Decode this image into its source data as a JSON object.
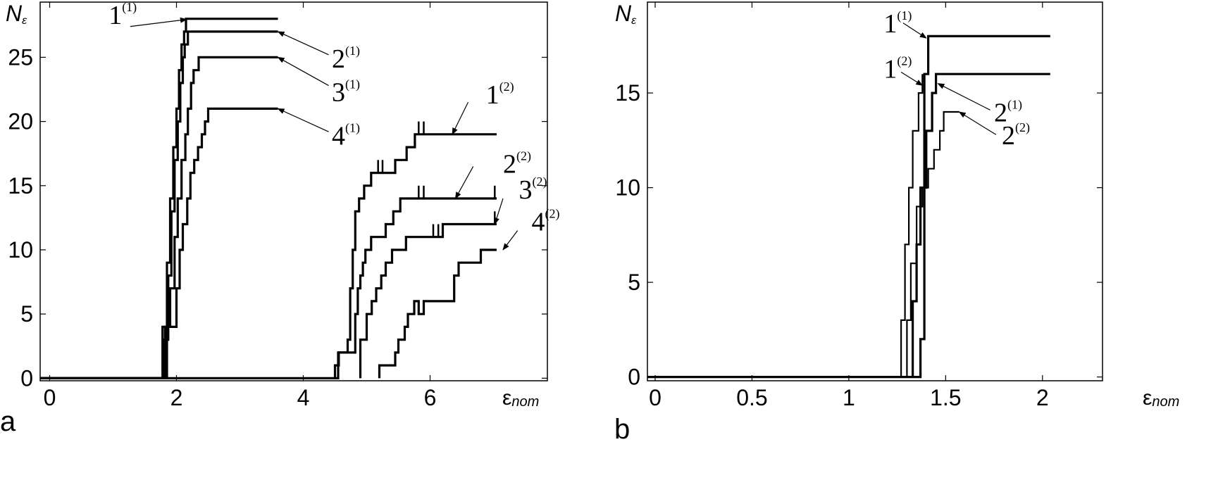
{
  "chart_data": [
    {
      "type": "line",
      "panel_label": "a",
      "ylabel": "N",
      "ylabel_sub": "ε",
      "xlabel": "ε",
      "xlabel_sub": "nom",
      "xlim": [
        -0.15,
        7.85
      ],
      "ylim": [
        -0.2,
        29.3
      ],
      "xticks": [
        0,
        2,
        4,
        6
      ],
      "xtick_labels": [
        "0",
        "2",
        "4",
        "6"
      ],
      "yticks": [
        0,
        5,
        10,
        15,
        20,
        25
      ],
      "ytick_labels": [
        "0",
        "5",
        "10",
        "15",
        "20",
        "25"
      ],
      "series": [
        {
          "label": "1",
          "sup": "(1)",
          "stroke": 3.2,
          "x": [
            -0.15,
            1.78,
            1.78,
            1.85,
            1.85,
            1.9,
            1.9,
            1.95,
            1.95,
            2.0,
            2.0,
            2.04,
            2.04,
            2.08,
            2.08,
            2.12,
            2.12,
            2.15,
            2.15,
            2.2,
            2.2,
            3.6
          ],
          "y": [
            0,
            0,
            4,
            4,
            9,
            9,
            14,
            14,
            18,
            18,
            21,
            21,
            24,
            24,
            26,
            26,
            27,
            27,
            28,
            28,
            28,
            28
          ]
        },
        {
          "label": "2",
          "sup": "(1)",
          "stroke": 3.2,
          "x": [
            -0.15,
            1.8,
            1.8,
            1.87,
            1.87,
            1.92,
            1.92,
            1.97,
            1.97,
            2.02,
            2.02,
            2.06,
            2.06,
            2.1,
            2.1,
            2.13,
            2.13,
            2.18,
            2.18,
            3.6
          ],
          "y": [
            0,
            0,
            3,
            3,
            8,
            8,
            13,
            13,
            17,
            17,
            20,
            20,
            23,
            23,
            25,
            25,
            26,
            26,
            27,
            27
          ]
        },
        {
          "label": "3",
          "sup": "(1)",
          "stroke": 3.2,
          "x": [
            -0.15,
            1.82,
            1.82,
            1.9,
            1.9,
            1.97,
            1.97,
            2.02,
            2.02,
            2.08,
            2.08,
            2.14,
            2.14,
            2.18,
            2.18,
            2.23,
            2.23,
            2.27,
            2.27,
            2.35,
            2.35,
            3.6
          ],
          "y": [
            0,
            0,
            4,
            4,
            7,
            7,
            11,
            11,
            14,
            14,
            17,
            17,
            19,
            19,
            21,
            21,
            23,
            23,
            24,
            24,
            25,
            25
          ]
        },
        {
          "label": "4",
          "sup": "(1)",
          "stroke": 3.2,
          "x": [
            -0.15,
            1.85,
            1.85,
            2.0,
            2.0,
            2.05,
            2.05,
            2.1,
            2.1,
            2.17,
            2.17,
            2.22,
            2.22,
            2.28,
            2.28,
            2.34,
            2.34,
            2.4,
            2.4,
            2.45,
            2.45,
            2.5,
            2.5,
            3.6
          ],
          "y": [
            0,
            0,
            4,
            4,
            7,
            7,
            10,
            10,
            12,
            12,
            14,
            14,
            16,
            16,
            17,
            17,
            18,
            18,
            19,
            19,
            20,
            20,
            21,
            21
          ]
        },
        {
          "label": "1",
          "sup": "(2)",
          "stroke": 3.2,
          "x": [
            4.5,
            4.5,
            4.56,
            4.56,
            4.7,
            4.7,
            4.74,
            4.74,
            4.78,
            4.78,
            4.82,
            4.82,
            4.88,
            4.88,
            4.96,
            4.96,
            5.07,
            5.07,
            5.14,
            5.14,
            5.28,
            5.28,
            5.35,
            5.35,
            5.45,
            5.45,
            5.54,
            5.54,
            5.63,
            5.63,
            5.76,
            5.76,
            7.05
          ],
          "y": [
            0,
            1,
            1,
            2,
            2,
            3,
            3,
            7,
            7,
            10,
            10,
            13,
            13,
            14,
            14,
            15,
            15,
            16,
            16,
            16,
            16,
            16,
            16,
            16,
            16,
            17,
            17,
            17,
            17,
            18,
            18,
            19,
            19
          ]
        },
        {
          "label": "2",
          "sup": "(2)",
          "stroke": 3.2,
          "x": [
            -0.15,
            4.55,
            4.55,
            4.82,
            4.82,
            4.86,
            4.86,
            4.9,
            4.9,
            4.94,
            4.94,
            4.98,
            4.98,
            5.07,
            5.07,
            5.15,
            5.15,
            5.3,
            5.3,
            5.42,
            5.42,
            5.53,
            5.53,
            5.62,
            5.62,
            5.72,
            5.72,
            7.05
          ],
          "y": [
            0,
            0,
            2,
            2,
            5,
            5,
            7,
            7,
            8,
            8,
            9,
            9,
            10,
            10,
            11,
            11,
            11,
            11,
            12,
            12,
            13,
            13,
            14,
            14,
            14,
            14,
            14,
            14
          ]
        },
        {
          "label": "3",
          "sup": "(2)",
          "stroke": 3.2,
          "x": [
            4.9,
            4.9,
            5.0,
            5.0,
            5.08,
            5.08,
            5.15,
            5.15,
            5.23,
            5.23,
            5.3,
            5.3,
            5.4,
            5.4,
            5.5,
            5.5,
            5.62,
            5.62,
            5.75,
            5.75,
            5.9,
            5.9,
            6.2,
            6.2,
            7.05
          ],
          "y": [
            0,
            3,
            3,
            5,
            5,
            6,
            6,
            7,
            7,
            8,
            8,
            9,
            9,
            10,
            10,
            10,
            10,
            11,
            11,
            11,
            11,
            11,
            11,
            12,
            12
          ]
        },
        {
          "label": "4",
          "sup": "(2)",
          "stroke": 3.2,
          "x": [
            5.2,
            5.2,
            5.3,
            5.3,
            5.45,
            5.45,
            5.5,
            5.5,
            5.6,
            5.6,
            5.65,
            5.65,
            5.75,
            5.75,
            5.82,
            5.82,
            5.9,
            5.9,
            6.0,
            6.0,
            6.38,
            6.38,
            6.45,
            6.45,
            6.6,
            6.6,
            6.8,
            6.8,
            7.05
          ],
          "y": [
            0,
            1,
            1,
            1,
            1,
            2,
            2,
            3,
            3,
            4,
            4,
            5,
            5,
            6,
            6,
            5,
            5,
            6,
            6,
            6,
            6,
            8,
            8,
            9,
            9,
            9,
            9,
            10,
            10
          ]
        }
      ],
      "spikes": [
        {
          "x": 5.18,
          "y": [
            16,
            17
          ]
        },
        {
          "x": 5.25,
          "y": [
            16,
            17
          ]
        },
        {
          "x": 5.82,
          "y": [
            19,
            20
          ]
        },
        {
          "x": 5.9,
          "y": [
            19,
            20
          ]
        },
        {
          "x": 5.82,
          "y": [
            14,
            15
          ]
        },
        {
          "x": 5.9,
          "y": [
            14,
            15
          ]
        },
        {
          "x": 7.02,
          "y": [
            14,
            15
          ]
        },
        {
          "x": 6.05,
          "y": [
            11,
            12
          ]
        },
        {
          "x": 6.13,
          "y": [
            11,
            12
          ]
        },
        {
          "x": 7.02,
          "y": [
            12,
            13
          ]
        }
      ],
      "annotations": [
        {
          "label": "1",
          "sup": "(1)",
          "text_at": [
            0.93,
            27.6
          ],
          "arrow_from": [
            1.27,
            27.4
          ],
          "arrow_to": [
            2.16,
            27.95
          ]
        },
        {
          "label": "2",
          "sup": "(1)",
          "text_at": [
            4.45,
            24.2
          ],
          "arrow_from": [
            4.4,
            25.2
          ],
          "arrow_to": [
            3.6,
            27.0
          ]
        },
        {
          "label": "3",
          "sup": "(1)",
          "text_at": [
            4.45,
            21.6
          ],
          "arrow_from": [
            4.4,
            22.8
          ],
          "arrow_to": [
            3.6,
            25.0
          ]
        },
        {
          "label": "4",
          "sup": "(1)",
          "text_at": [
            4.45,
            18.2
          ],
          "arrow_from": [
            4.4,
            19.2
          ],
          "arrow_to": [
            3.6,
            21.0
          ]
        },
        {
          "label": "1",
          "sup": "(2)",
          "text_at": [
            6.88,
            21.4
          ],
          "arrow_from": [
            6.6,
            21.5
          ],
          "arrow_to": [
            6.35,
            19.0
          ]
        },
        {
          "label": "2",
          "sup": "(2)",
          "text_at": [
            7.15,
            16.0
          ],
          "arrow_from": [
            6.68,
            16.5
          ],
          "arrow_to": [
            6.4,
            14.0
          ]
        },
        {
          "label": "3",
          "sup": "(2)",
          "text_at": [
            7.4,
            14.0
          ],
          "arrow_from": [
            7.15,
            14.0
          ],
          "arrow_to": [
            7.02,
            12.0
          ]
        },
        {
          "label": "4",
          "sup": "(2)",
          "text_at": [
            7.6,
            11.5
          ],
          "arrow_from": [
            7.38,
            11.5
          ],
          "arrow_to": [
            7.15,
            10.0
          ]
        }
      ]
    },
    {
      "type": "line",
      "panel_label": "b",
      "ylabel": "N",
      "ylabel_sub": "ε",
      "xlabel": "ε",
      "xlabel_sub": "nom",
      "xlim": [
        -0.04,
        2.31
      ],
      "ylim": [
        -0.2,
        19.8
      ],
      "xticks": [
        0,
        0.5,
        1,
        1.5,
        2
      ],
      "xtick_labels": [
        "0",
        "0.5",
        "1",
        "1.5",
        "2"
      ],
      "yticks": [
        0,
        5,
        10,
        15
      ],
      "ytick_labels": [
        "0",
        "5",
        "10",
        "15"
      ],
      "series": [
        {
          "label": "1",
          "sup": "(1)",
          "stroke": 3.2,
          "x": [
            -0.04,
            1.37,
            1.37,
            1.39,
            1.39,
            1.41,
            1.41,
            2.04
          ],
          "y": [
            0,
            0,
            2,
            2,
            16,
            16,
            18,
            18
          ]
        },
        {
          "label": "1",
          "sup": "(2)",
          "stroke": 2.2,
          "x": [
            1.27,
            1.27,
            1.29,
            1.29,
            1.31,
            1.31,
            1.33,
            1.33,
            1.36,
            1.36,
            1.38,
            1.38
          ],
          "y": [
            0,
            3,
            3,
            7,
            7,
            10,
            10,
            13,
            13,
            15,
            15,
            16
          ]
        },
        {
          "label": "2",
          "sup": "(1)",
          "stroke": 3.2,
          "x": [
            1.33,
            1.33,
            1.35,
            1.35,
            1.37,
            1.37,
            1.4,
            1.4,
            1.43,
            1.43,
            1.45,
            1.45,
            2.04
          ],
          "y": [
            0,
            4,
            4,
            7,
            7,
            10,
            10,
            13,
            13,
            15,
            15,
            16,
            16
          ]
        },
        {
          "label": "2",
          "sup": "(2)",
          "stroke": 2.2,
          "x": [
            1.3,
            1.3,
            1.32,
            1.32,
            1.35,
            1.35,
            1.38,
            1.38,
            1.41,
            1.41,
            1.44,
            1.44,
            1.47,
            1.47,
            1.49,
            1.49,
            1.57
          ],
          "y": [
            0,
            3,
            3,
            6,
            6,
            9,
            9,
            10,
            10,
            11,
            11,
            12,
            12,
            13,
            13,
            14,
            14
          ]
        }
      ],
      "spikes": [],
      "annotations": [
        {
          "label": "1",
          "sup": "(1)",
          "text_at": [
            1.18,
            18.2
          ],
          "arrow_from": [
            1.28,
            18.7
          ],
          "arrow_to": [
            1.4,
            17.9
          ]
        },
        {
          "label": "1",
          "sup": "(2)",
          "text_at": [
            1.18,
            15.8
          ],
          "arrow_from": [
            1.27,
            16.1
          ],
          "arrow_to": [
            1.38,
            15.4
          ]
        },
        {
          "label": "2",
          "sup": "(1)",
          "text_at": [
            1.75,
            13.5
          ],
          "arrow_from": [
            1.73,
            14.1
          ],
          "arrow_to": [
            1.46,
            15.5
          ]
        },
        {
          "label": "2",
          "sup": "(2)",
          "text_at": [
            1.79,
            12.3
          ],
          "arrow_from": [
            1.76,
            12.8
          ],
          "arrow_to": [
            1.57,
            14.0
          ]
        }
      ]
    }
  ]
}
